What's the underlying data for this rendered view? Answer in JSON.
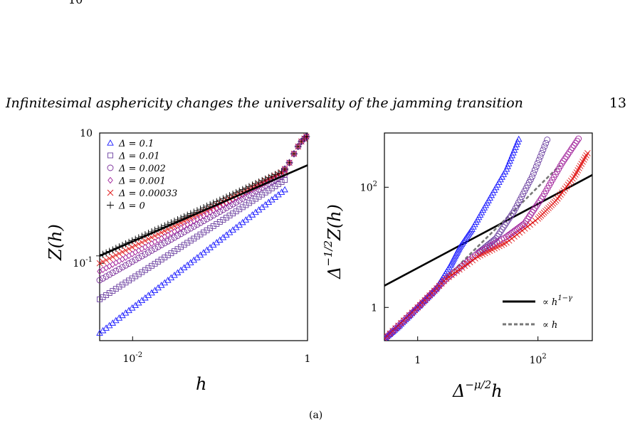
{
  "top_fragment": "10",
  "header": {
    "running_title": "Infinitesimal asphericity changes the universality of the jamming transition",
    "page_number": "13"
  },
  "bottom_fragment": "(a)",
  "chart_data": [
    {
      "type": "scatter",
      "panel": "left",
      "xlabel": "h",
      "ylabel": "Z(h)",
      "x_scale": "log",
      "y_scale": "log",
      "xlim": [
        0.0042,
        1.0
      ],
      "ylim": [
        0.0065,
        10
      ],
      "x_ticks": [
        {
          "value": 0.01,
          "label": "10",
          "sup": "-2"
        },
        {
          "value": 1,
          "label": "1",
          "sup": ""
        }
      ],
      "y_ticks": [
        {
          "value": 0.1,
          "label": "10",
          "sup": "-1"
        },
        {
          "value": 10,
          "label": "10",
          "sup": ""
        }
      ],
      "legend_position": "top-left",
      "series": [
        {
          "name": "Δ = 0.1",
          "marker": "triangle",
          "color": "#1a1aff",
          "x_range": [
            0.0042,
            0.55
          ],
          "y_range": [
            0.0085,
            1.35
          ]
        },
        {
          "name": "Δ = 0.01",
          "marker": "square",
          "color": "#6b3fa0",
          "x_range": [
            0.0042,
            0.55
          ],
          "y_range": [
            0.028,
            1.9
          ]
        },
        {
          "name": "Δ = 0.002",
          "marker": "circle",
          "color": "#7a2e9a",
          "x_range": [
            0.0042,
            0.55
          ],
          "y_range": [
            0.055,
            2.3
          ]
        },
        {
          "name": "Δ = 0.001",
          "marker": "diamond",
          "color": "#a0209a",
          "x_range": [
            0.0042,
            0.55
          ],
          "y_range": [
            0.075,
            2.5
          ]
        },
        {
          "name": "Δ = 0.00033",
          "marker": "x",
          "color": "#e01818",
          "x_range": [
            0.0042,
            0.55
          ],
          "y_range": [
            0.1,
            2.6
          ]
        },
        {
          "name": "Δ = 0",
          "marker": "plus",
          "color": "#000000",
          "x_range": [
            0.0042,
            0.55
          ],
          "y_range": [
            0.13,
            2.7
          ]
        }
      ],
      "tail": {
        "x": [
          0.55,
          0.62,
          0.7,
          0.78,
          0.85,
          0.92,
          0.97
        ],
        "y": [
          2.8,
          3.5,
          4.8,
          6.2,
          7.4,
          8.2,
          8.8
        ]
      },
      "fit_line": {
        "x": [
          0.0042,
          1.0
        ],
        "y": [
          0.13,
          3.2
        ]
      }
    },
    {
      "type": "scatter",
      "panel": "right",
      "xlabel": "Δ^{-μ/2} h",
      "ylabel": "Δ^{-1/2} Z(h)",
      "x_scale": "log",
      "y_scale": "log",
      "xlim": [
        0.28,
        800
      ],
      "ylim": [
        0.28,
        800
      ],
      "x_ticks": [
        {
          "value": 1,
          "label": "1",
          "sup": ""
        },
        {
          "value": 100,
          "label": "10",
          "sup": "2"
        }
      ],
      "y_ticks": [
        {
          "value": 1,
          "label": "1",
          "sup": ""
        },
        {
          "value": 100,
          "label": "10",
          "sup": "2"
        }
      ],
      "legend_position": "bottom-right",
      "legend": [
        {
          "label": "∝ h",
          "sup": "1−γ",
          "style": "solid"
        },
        {
          "label": "∝ h",
          "sup": "",
          "style": "dashed"
        }
      ],
      "lines": [
        {
          "style": "solid",
          "x": [
            0.28,
            800
          ],
          "y": [
            2.3,
            160
          ]
        },
        {
          "style": "dashed",
          "x": [
            0.28,
            230
          ],
          "y": [
            0.3,
            230
          ]
        }
      ],
      "series": [
        {
          "name": "Δ = 0.1",
          "color": "#1a1aff",
          "marker": "triangle",
          "x": [
            0.28,
            0.5,
            1,
            2,
            3.5,
            5,
            8,
            15,
            30,
            50
          ],
          "y": [
            0.3,
            0.5,
            1,
            2,
            5,
            10,
            20,
            60,
            200,
            700
          ]
        },
        {
          "name": "Δ = 0.01",
          "color": "#6b3fa0",
          "marker": "circle",
          "x": [
            0.28,
            1,
            3,
            10,
            20,
            40,
            80,
            150
          ],
          "y": [
            0.3,
            1,
            3,
            8,
            14,
            40,
            150,
            700
          ]
        },
        {
          "name": "Δ = 0.001",
          "color": "#a0209a",
          "marker": "circle",
          "x": [
            0.28,
            1,
            3,
            10,
            30,
            60,
            120,
            250,
            500
          ],
          "y": [
            0.3,
            1,
            3,
            8,
            15,
            25,
            70,
            250,
            700
          ]
        },
        {
          "name": "Δ = 0.00033",
          "color": "#e01818",
          "marker": "x",
          "x": [
            0.28,
            1,
            3,
            10,
            30,
            100,
            200,
            400,
            700
          ],
          "y": [
            0.3,
            1,
            3,
            7,
            12,
            30,
            60,
            150,
            400
          ]
        }
      ]
    }
  ]
}
